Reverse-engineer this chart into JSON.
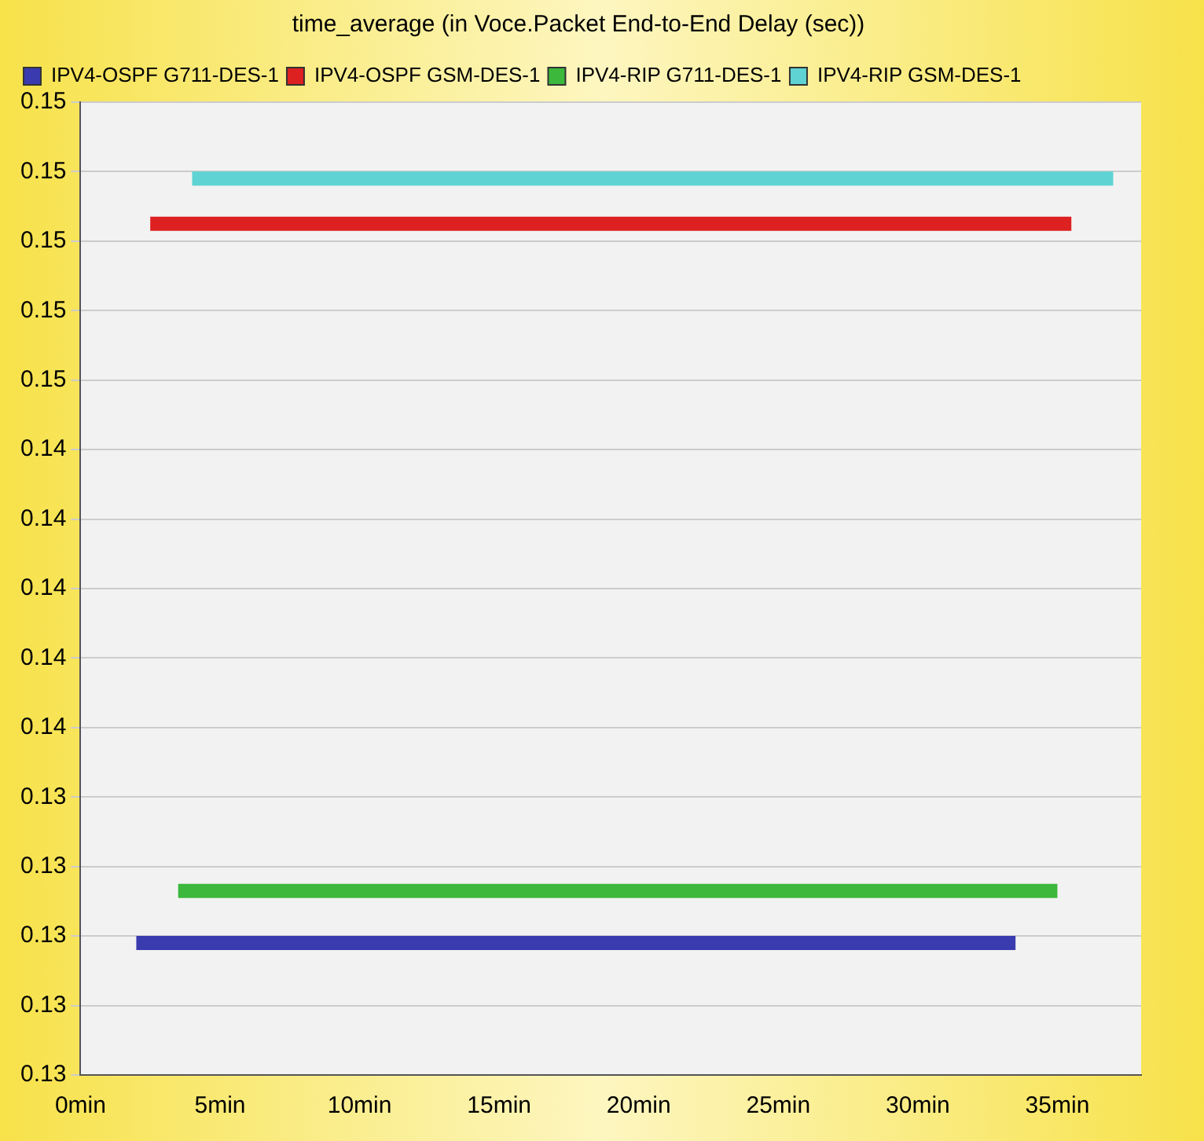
{
  "chart_data": {
    "type": "line",
    "title": "time_average (in Voce.Packet End-to-End Delay (sec))",
    "series": [
      {
        "name": "IPV4-OSPF G711-DES-1",
        "color": "#3b3bb0",
        "x": [
          2,
          33.5
        ],
        "values": [
          0.1298,
          0.1298
        ]
      },
      {
        "name": "IPV4-OSPF GSM-DES-1",
        "color": "#dd2020",
        "x": [
          2.5,
          35.5
        ],
        "values": [
          0.1505,
          0.1505
        ]
      },
      {
        "name": "IPV4-RIP G711-DES-1",
        "color": "#3cb83c",
        "x": [
          3.5,
          35
        ],
        "values": [
          0.1313,
          0.1313
        ]
      },
      {
        "name": "IPV4-RIP GSM-DES-1",
        "color": "#5fd3d3",
        "x": [
          4,
          37
        ],
        "values": [
          0.1518,
          0.1518
        ]
      }
    ],
    "xlim": [
      0,
      38
    ],
    "xticks": [
      {
        "value": 0,
        "label": "0min"
      },
      {
        "value": 5,
        "label": "5min"
      },
      {
        "value": 10,
        "label": "10min"
      },
      {
        "value": 15,
        "label": "15min"
      },
      {
        "value": 20,
        "label": "20min"
      },
      {
        "value": 25,
        "label": "25min"
      },
      {
        "value": 30,
        "label": "30min"
      },
      {
        "value": 35,
        "label": "35min"
      }
    ],
    "ylim": [
      0.126,
      0.154
    ],
    "yticks": [
      {
        "value": 0.126,
        "label": "0.13"
      },
      {
        "value": 0.128,
        "label": "0.13"
      },
      {
        "value": 0.13,
        "label": "0.13"
      },
      {
        "value": 0.132,
        "label": "0.13"
      },
      {
        "value": 0.134,
        "label": "0.13"
      },
      {
        "value": 0.136,
        "label": "0.14"
      },
      {
        "value": 0.138,
        "label": "0.14"
      },
      {
        "value": 0.14,
        "label": "0.14"
      },
      {
        "value": 0.142,
        "label": "0.14"
      },
      {
        "value": 0.144,
        "label": "0.14"
      },
      {
        "value": 0.146,
        "label": "0.15"
      },
      {
        "value": 0.148,
        "label": "0.15"
      },
      {
        "value": 0.15,
        "label": "0.15"
      },
      {
        "value": 0.152,
        "label": "0.15"
      },
      {
        "value": 0.154,
        "label": "0.15"
      }
    ],
    "grid": "y",
    "legend": "top left",
    "marker": "none",
    "line_style": "solid"
  }
}
